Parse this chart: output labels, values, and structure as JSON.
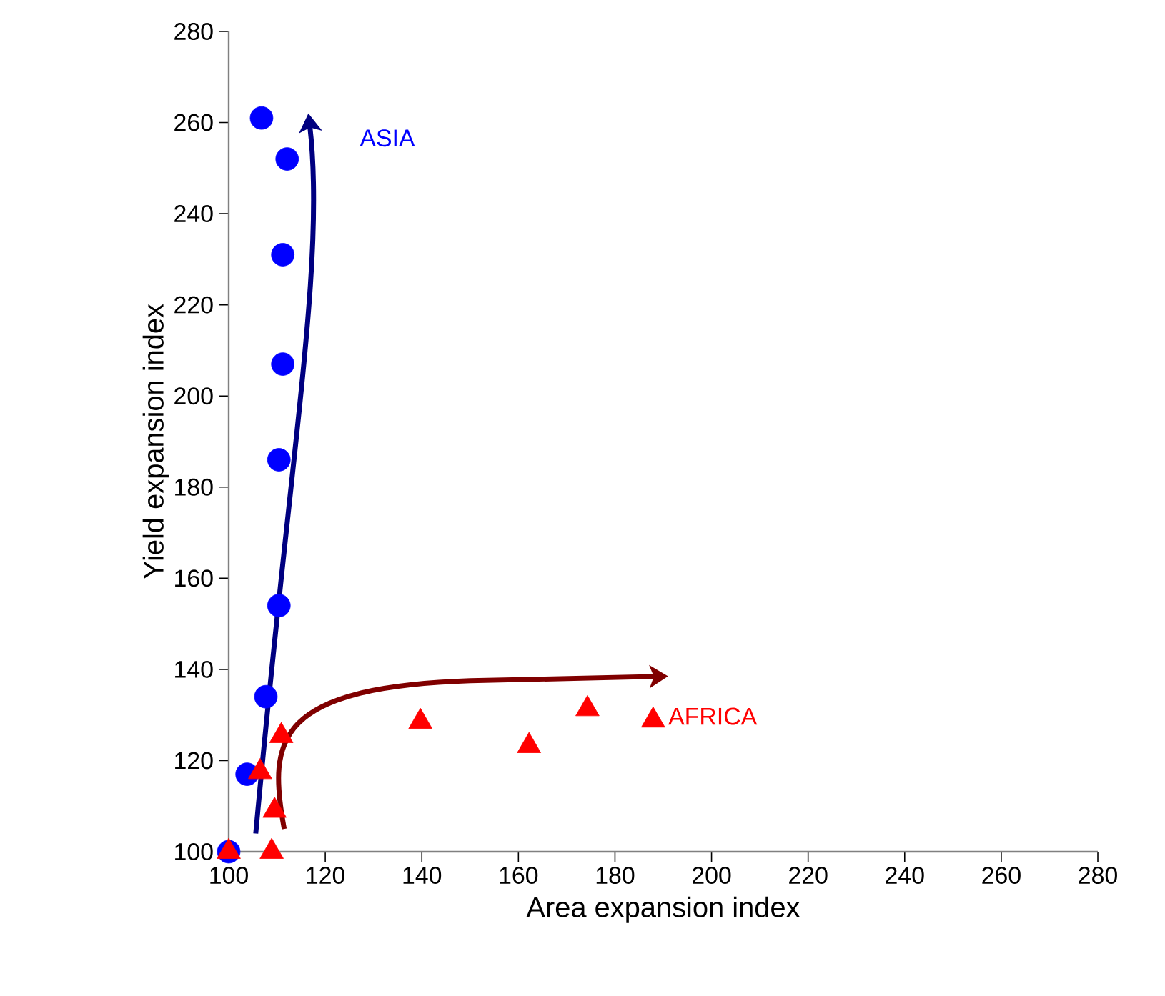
{
  "chart_data": {
    "type": "scatter",
    "xlabel": "Area expansion index",
    "ylabel": "Yield expansion index",
    "xlim": [
      100,
      280
    ],
    "xticks": [
      100,
      120,
      140,
      160,
      180,
      200,
      220,
      240,
      260,
      280
    ],
    "ylim": [
      100,
      280
    ],
    "yticks": [
      100,
      120,
      140,
      160,
      180,
      200,
      220,
      240,
      260,
      280
    ],
    "grid": false,
    "legend": false,
    "series": [
      {
        "name": "ASIA",
        "color": "#0000ff",
        "marker": "circle",
        "x": [
          100,
          103.8,
          107.7,
          110.4,
          110.4,
          111.2,
          111.2,
          112.1,
          106.8
        ],
        "values": [
          100,
          117,
          134,
          154,
          186,
          207,
          231,
          252,
          261
        ]
      },
      {
        "name": "AFRICA",
        "color": "#ff0000",
        "marker": "triangle",
        "x": [
          100,
          108.9,
          109.5,
          106.5,
          110.9,
          139.7,
          162.2,
          174.3,
          187.9
        ],
        "values": [
          100,
          100,
          109,
          117.5,
          125.4,
          128.5,
          123.2,
          131.3,
          128.8
        ]
      }
    ]
  }
}
